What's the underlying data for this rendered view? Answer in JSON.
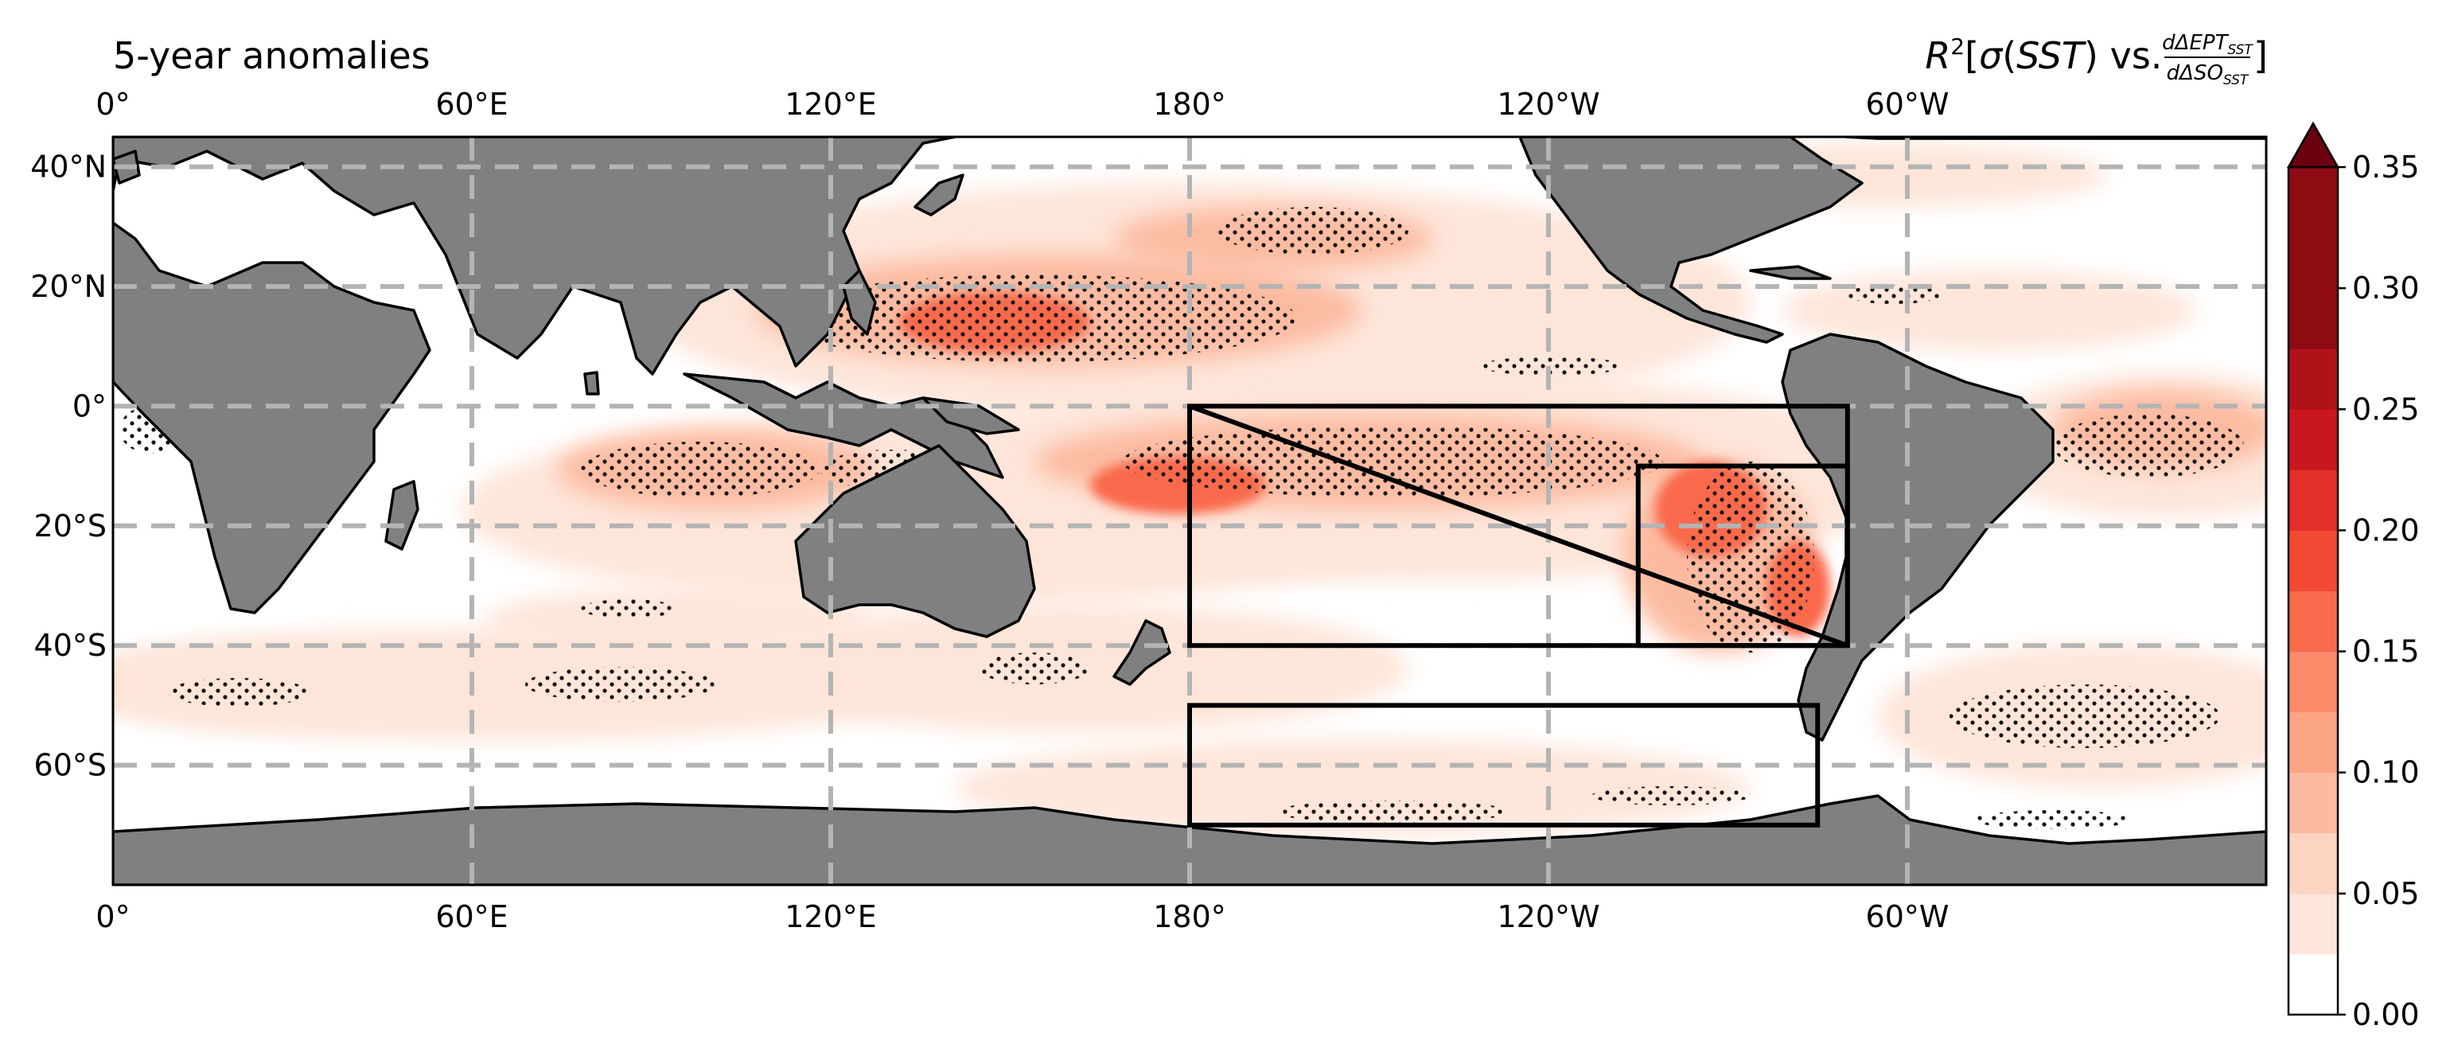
{
  "title_left": "5-year anomalies",
  "title_right": {
    "prefix": "R",
    "sup": "2",
    "bracket_open": "[",
    "sigma": "σ",
    "sst_open": "(",
    "sst": "SST",
    "sst_close": ")",
    "vs": " vs. ",
    "numerator": "dΔEPT",
    "numerator_sub": "SST",
    "denominator": "dΔSO",
    "denominator_sub": "SST",
    "bracket_close": "]"
  },
  "top_lon_ticks": [
    "0°",
    "60°E",
    "120°E",
    "180°",
    "120°W",
    "60°W"
  ],
  "bottom_lon_ticks": [
    "0°",
    "60°E",
    "120°E",
    "180°",
    "120°W",
    "60°W"
  ],
  "lat_ticks": [
    "40°N",
    "20°N",
    "0°",
    "20°S",
    "40°S",
    "60°S"
  ],
  "colorbar": {
    "ticks": [
      "0.00",
      "0.05",
      "0.10",
      "0.15",
      "0.20",
      "0.25",
      "0.30",
      "0.35"
    ],
    "min": 0.0,
    "max": 0.35,
    "step": 0.025,
    "colors": [
      "#ffffff",
      "#fee5d9",
      "#fdd4c2",
      "#fcbba1",
      "#fca486",
      "#fc8a6a",
      "#f9694c",
      "#f24a34",
      "#e32f27",
      "#c9181d",
      "#b11218",
      "#8f0b13",
      "#6b010e"
    ],
    "extend": "max"
  },
  "colors": {
    "land": "#808080",
    "grid": "#b4b4b4",
    "box": "#000000"
  },
  "extent": {
    "lon_min": 0,
    "lon_max": 360,
    "lat_min": -80,
    "lat_max": 45
  },
  "boxes": [
    {
      "lon": [
        180,
        290
      ],
      "lat": [
        0,
        -40
      ]
    },
    {
      "lon": [
        255,
        290
      ],
      "lat": [
        -10,
        -40
      ]
    },
    {
      "lon": [
        180,
        285
      ],
      "lat": [
        -50,
        -70
      ]
    }
  ],
  "triangle_line": {
    "from": [
      180,
      0
    ],
    "to": [
      290,
      -40
    ]
  }
}
